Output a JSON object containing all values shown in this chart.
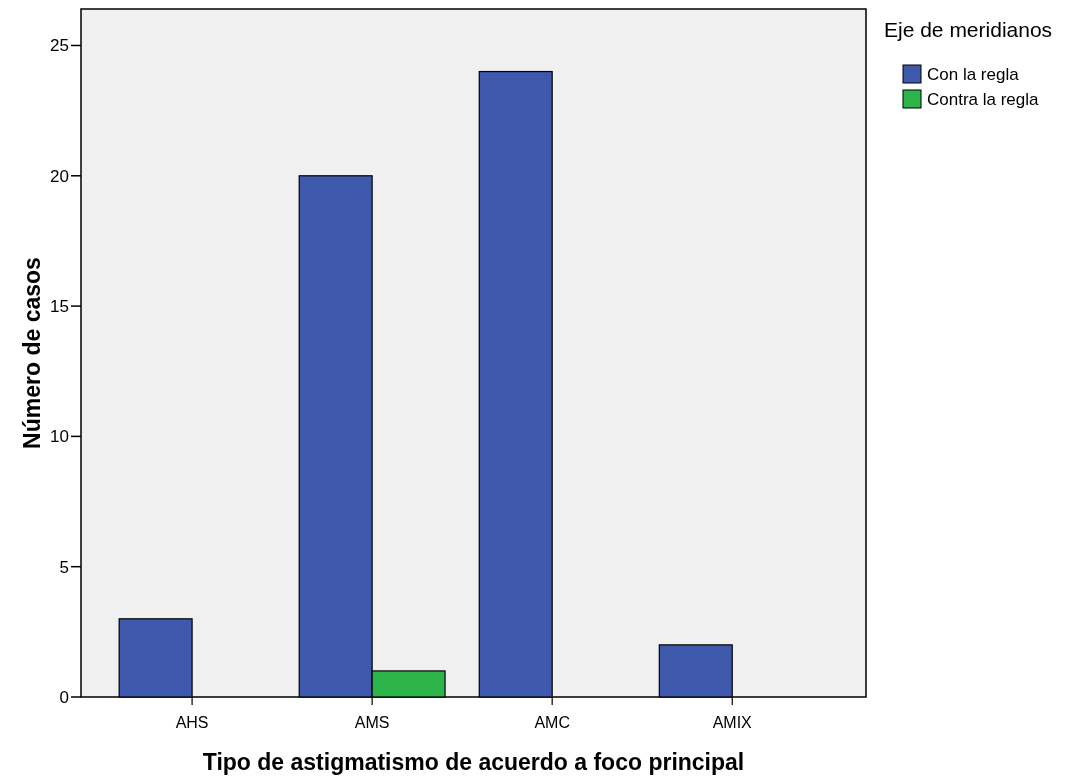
{
  "chart_data": {
    "type": "bar",
    "xlabel": "Tipo de astigmatismo de acuerdo a foco principal",
    "ylabel": "Número de casos",
    "legend_title": "Eje de meridianos",
    "legend": "top right",
    "grid": false,
    "categories": [
      "AHS",
      "AMS",
      "AMC",
      "AMIX"
    ],
    "series": [
      {
        "name": "Con la regla",
        "color": "#3e58ac",
        "values": [
          3,
          20,
          24,
          2
        ]
      },
      {
        "name": "Contra la regla",
        "color": "#2eb54a",
        "values": [
          null,
          1,
          null,
          null
        ]
      }
    ],
    "ylim": [
      0,
      26.4
    ],
    "yticks": [
      0,
      5,
      10,
      15,
      20,
      25
    ]
  }
}
